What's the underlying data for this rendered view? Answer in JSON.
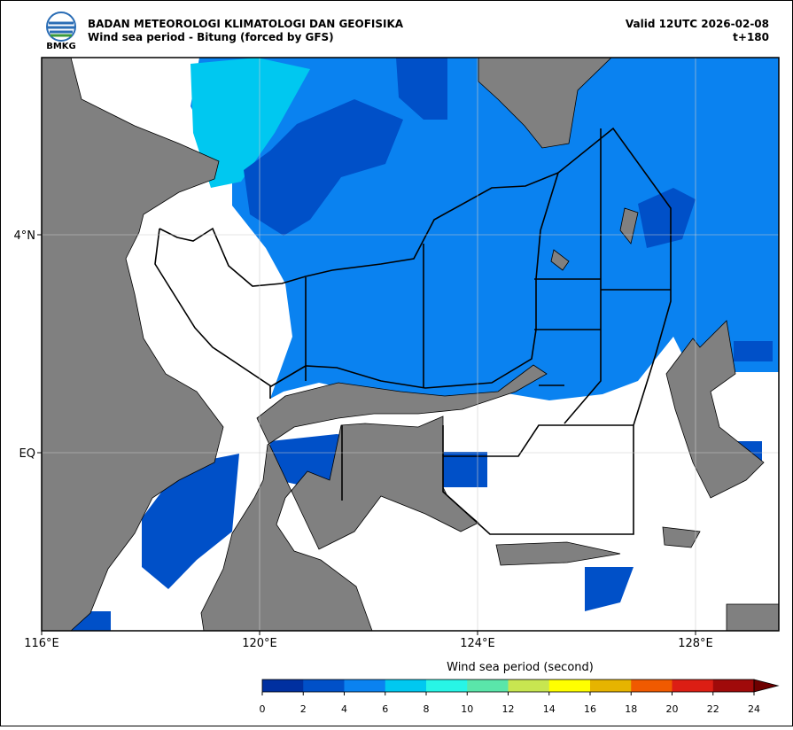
{
  "header": {
    "logo_text": "BMKG",
    "title": "BADAN METEOROLOGI KLIMATOLOGI DAN GEOFISIKA",
    "subtitle": "Wind sea period - Bitung (forced by GFS)",
    "valid": "Valid 12UTC 2026-02-08",
    "lead": "t+180"
  },
  "map": {
    "x_labels": [
      "116°E",
      "120°E",
      "124°E",
      "128°E"
    ],
    "y_labels": [
      "4°N",
      "EQ"
    ]
  },
  "colorbar": {
    "title": "Wind sea period (second)",
    "ticks": [
      0,
      2,
      4,
      6,
      8,
      10,
      12,
      14,
      16,
      18,
      20,
      22,
      24
    ],
    "colors": [
      "#0030a0",
      "#0050c8",
      "#0a82f0",
      "#00c8f0",
      "#28f5e6",
      "#5ae6aa",
      "#c8e650",
      "#ffff00",
      "#e6b400",
      "#f05a00",
      "#dc1e14",
      "#a00a0a"
    ],
    "extend_color": "#6e0000"
  }
}
